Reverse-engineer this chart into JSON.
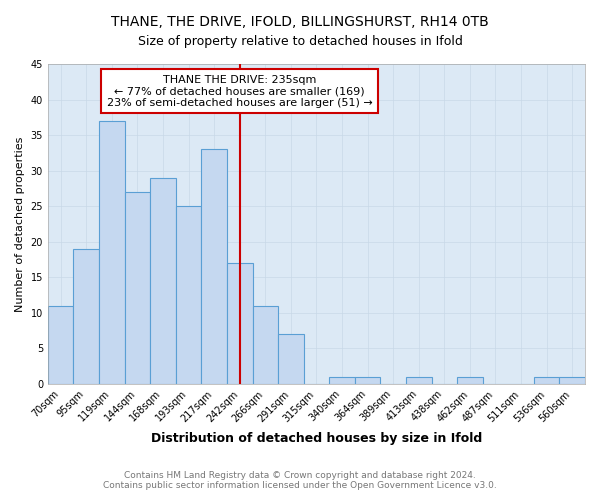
{
  "title": "THANE, THE DRIVE, IFOLD, BILLINGSHURST, RH14 0TB",
  "subtitle": "Size of property relative to detached houses in Ifold",
  "xlabel": "Distribution of detached houses by size in Ifold",
  "ylabel": "Number of detached properties",
  "footnote": "Contains HM Land Registry data © Crown copyright and database right 2024.\nContains public sector information licensed under the Open Government Licence v3.0.",
  "categories": [
    "70sqm",
    "95sqm",
    "119sqm",
    "144sqm",
    "168sqm",
    "193sqm",
    "217sqm",
    "242sqm",
    "266sqm",
    "291sqm",
    "315sqm",
    "340sqm",
    "364sqm",
    "389sqm",
    "413sqm",
    "438sqm",
    "462sqm",
    "487sqm",
    "511sqm",
    "536sqm",
    "560sqm"
  ],
  "values": [
    11,
    19,
    37,
    27,
    29,
    25,
    33,
    17,
    11,
    7,
    0,
    1,
    1,
    0,
    1,
    0,
    1,
    0,
    0,
    1,
    1
  ],
  "bar_color": "#c5d8f0",
  "bar_edge_color": "#5a9fd4",
  "vline_color": "#cc0000",
  "annotation_line1": "THANE THE DRIVE: 235sqm",
  "annotation_line2": "← 77% of detached houses are smaller (169)",
  "annotation_line3": "23% of semi-detached houses are larger (51) →",
  "annotation_box_color": "#ffffff",
  "annotation_box_edge": "#cc0000",
  "ylim": [
    0,
    45
  ],
  "yticks": [
    0,
    5,
    10,
    15,
    20,
    25,
    30,
    35,
    40,
    45
  ],
  "grid_color": "#c8d8e8",
  "bg_color": "#dce9f5",
  "title_fontsize": 10,
  "subtitle_fontsize": 9,
  "xlabel_fontsize": 9,
  "ylabel_fontsize": 8,
  "tick_fontsize": 7,
  "annotation_fontsize": 8,
  "footnote_fontsize": 6.5
}
